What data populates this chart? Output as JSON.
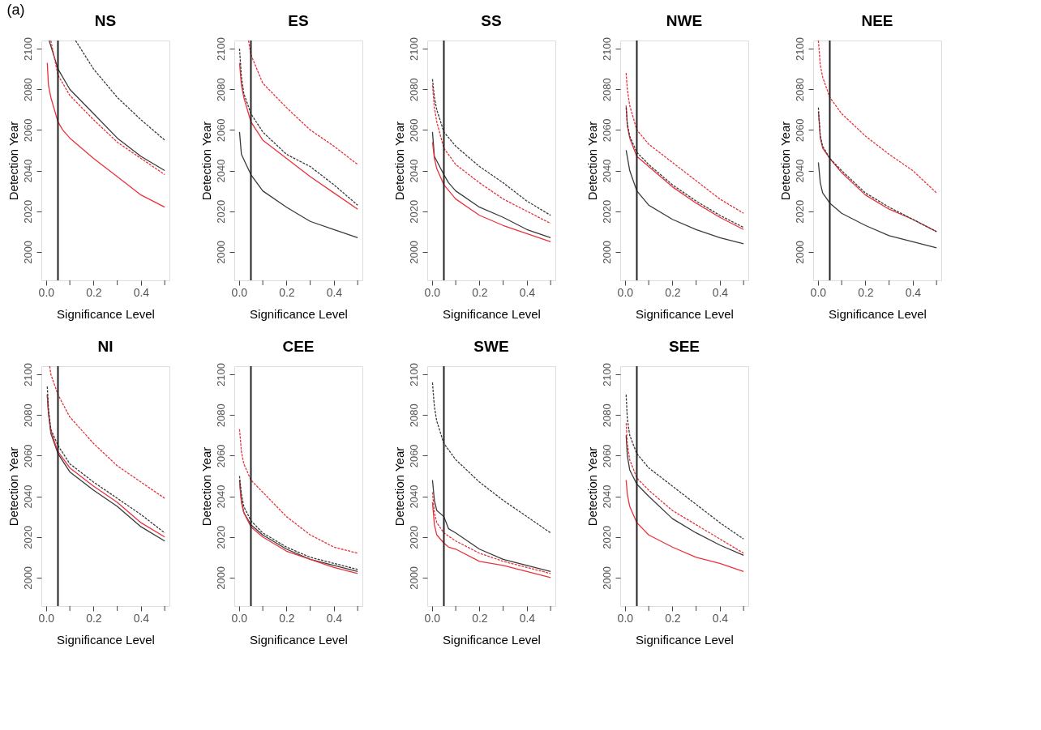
{
  "chart_data": [
    {
      "type": "line",
      "title": "NS",
      "xlabel": "Significance Level",
      "ylabel": "Detection Year",
      "annotations": [
        "(a)"
      ],
      "xlim": [
        -0.02,
        0.52
      ],
      "ylim": [
        1986,
        2104
      ],
      "xticks": [
        {
          "value": 0,
          "label": "0.0"
        },
        {
          "value": 0.1,
          "label": null
        },
        {
          "value": 0.2,
          "label": "0.2"
        },
        {
          "value": 0.3,
          "label": null
        },
        {
          "value": 0.4,
          "label": "0.4"
        },
        {
          "value": 0.5,
          "label": null
        }
      ],
      "yticks": [
        2000,
        2020,
        2040,
        2060,
        2080,
        2100
      ],
      "grid": false,
      "legend": false,
      "ref_lines": [
        {
          "axis": "x",
          "value": 0.05
        }
      ],
      "series": [
        {
          "color": "#3a3a3a",
          "line_style": "solid",
          "x": [
            0.013,
            0.05,
            0.1,
            0.2,
            0.3,
            0.4,
            0.5
          ],
          "values": [
            2104,
            2090,
            2080,
            2068,
            2056,
            2047,
            2040
          ]
        },
        {
          "color": "#3a3a3a",
          "line_style": "dashed",
          "x": [
            0.124,
            0.2,
            0.3,
            0.4,
            0.5
          ],
          "values": [
            2104,
            2090,
            2076,
            2065,
            2055
          ]
        },
        {
          "color": "#e8323c",
          "line_style": "solid",
          "x": [
            0.005,
            0.01,
            0.02,
            0.05,
            0.07,
            0.1,
            0.2,
            0.3,
            0.4,
            0.5
          ],
          "values": [
            2093,
            2082,
            2076,
            2064,
            2060,
            2056,
            2046,
            2037,
            2028,
            2022
          ]
        },
        {
          "color": "#e8323c",
          "line_style": "dashed",
          "x": [
            0.02,
            0.05,
            0.1,
            0.2,
            0.3,
            0.4,
            0.5
          ],
          "values": [
            2104,
            2087,
            2077,
            2065,
            2054,
            2046,
            2038
          ]
        }
      ]
    },
    {
      "type": "line",
      "title": "ES",
      "xlabel": "Significance Level",
      "ylabel": "Detection Year",
      "xlim": [
        -0.02,
        0.52
      ],
      "ylim": [
        1986,
        2104
      ],
      "xticks": [
        {
          "value": 0,
          "label": "0.0"
        },
        {
          "value": 0.1,
          "label": null
        },
        {
          "value": 0.2,
          "label": "0.2"
        },
        {
          "value": 0.3,
          "label": null
        },
        {
          "value": 0.4,
          "label": "0.4"
        },
        {
          "value": 0.5,
          "label": null
        }
      ],
      "yticks": [
        2000,
        2020,
        2040,
        2060,
        2080,
        2100
      ],
      "grid": false,
      "legend": false,
      "ref_lines": [
        {
          "axis": "x",
          "value": 0.05
        }
      ],
      "series": [
        {
          "color": "#3a3a3a",
          "line_style": "solid",
          "x": [
            0.002,
            0.01,
            0.05,
            0.1,
            0.2,
            0.3,
            0.4,
            0.5
          ],
          "values": [
            2059,
            2048,
            2038,
            2030,
            2022,
            2015,
            2011,
            2007
          ]
        },
        {
          "color": "#3a3a3a",
          "line_style": "dashed",
          "x": [
            0.002,
            0.01,
            0.02,
            0.05,
            0.1,
            0.2,
            0.3,
            0.4,
            0.5
          ],
          "values": [
            2100,
            2086,
            2078,
            2068,
            2059,
            2048,
            2042,
            2033,
            2023
          ]
        },
        {
          "color": "#e8323c",
          "line_style": "solid",
          "x": [
            0.002,
            0.01,
            0.02,
            0.05,
            0.1,
            0.2,
            0.3,
            0.4,
            0.5
          ],
          "values": [
            2093,
            2082,
            2076,
            2064,
            2055,
            2046,
            2037,
            2029,
            2021
          ]
        },
        {
          "color": "#e8323c",
          "line_style": "dashed",
          "x": [
            0.04,
            0.05,
            0.1,
            0.2,
            0.3,
            0.4,
            0.5
          ],
          "values": [
            2104,
            2097,
            2083,
            2071,
            2060,
            2052,
            2043
          ]
        }
      ]
    },
    {
      "type": "line",
      "title": "SS",
      "xlabel": "Significance Level",
      "ylabel": "Detection Year",
      "xlim": [
        -0.02,
        0.52
      ],
      "ylim": [
        1986,
        2104
      ],
      "xticks": [
        {
          "value": 0,
          "label": "0.0"
        },
        {
          "value": 0.1,
          "label": null
        },
        {
          "value": 0.2,
          "label": "0.2"
        },
        {
          "value": 0.3,
          "label": null
        },
        {
          "value": 0.4,
          "label": "0.4"
        },
        {
          "value": 0.5,
          "label": null
        }
      ],
      "yticks": [
        2000,
        2020,
        2040,
        2060,
        2080,
        2100
      ],
      "grid": false,
      "legend": false,
      "ref_lines": [
        {
          "axis": "x",
          "value": 0.05
        }
      ],
      "series": [
        {
          "color": "#3a3a3a",
          "line_style": "solid",
          "x": [
            0.002,
            0.01,
            0.05,
            0.07,
            0.1,
            0.2,
            0.3,
            0.4,
            0.5
          ],
          "values": [
            2059,
            2047,
            2038,
            2034,
            2030,
            2022,
            2017,
            2011,
            2007
          ]
        },
        {
          "color": "#3a3a3a",
          "line_style": "dashed",
          "x": [
            0.002,
            0.01,
            0.02,
            0.05,
            0.1,
            0.2,
            0.3,
            0.4,
            0.5
          ],
          "values": [
            2085,
            2076,
            2070,
            2059,
            2052,
            2042,
            2034,
            2025,
            2018
          ]
        },
        {
          "color": "#e8323c",
          "line_style": "solid",
          "x": [
            0.002,
            0.01,
            0.02,
            0.05,
            0.1,
            0.2,
            0.3,
            0.4,
            0.5
          ],
          "values": [
            2054,
            2046,
            2041,
            2033,
            2026,
            2018,
            2013,
            2009,
            2005
          ]
        },
        {
          "color": "#e8323c",
          "line_style": "dashed",
          "x": [
            0.002,
            0.01,
            0.02,
            0.05,
            0.1,
            0.2,
            0.3,
            0.4,
            0.5
          ],
          "values": [
            2082,
            2071,
            2064,
            2051,
            2043,
            2034,
            2026,
            2020,
            2014
          ]
        }
      ]
    },
    {
      "type": "line",
      "title": "NWE",
      "xlabel": "Significance Level",
      "ylabel": "Detection Year",
      "xlim": [
        -0.02,
        0.52
      ],
      "ylim": [
        1986,
        2104
      ],
      "xticks": [
        {
          "value": 0,
          "label": "0.0"
        },
        {
          "value": 0.1,
          "label": null
        },
        {
          "value": 0.2,
          "label": "0.2"
        },
        {
          "value": 0.3,
          "label": null
        },
        {
          "value": 0.4,
          "label": "0.4"
        },
        {
          "value": 0.5,
          "label": null
        }
      ],
      "yticks": [
        2000,
        2020,
        2040,
        2060,
        2080,
        2100
      ],
      "grid": false,
      "legend": false,
      "ref_lines": [
        {
          "axis": "x",
          "value": 0.05
        }
      ],
      "series": [
        {
          "color": "#3a3a3a",
          "line_style": "solid",
          "x": [
            0.005,
            0.02,
            0.05,
            0.1,
            0.2,
            0.3,
            0.4,
            0.5
          ],
          "values": [
            2050,
            2040,
            2030,
            2023,
            2016,
            2011,
            2007,
            2004
          ]
        },
        {
          "color": "#3a3a3a",
          "line_style": "dashed",
          "x": [
            0.005,
            0.01,
            0.02,
            0.05,
            0.1,
            0.2,
            0.3,
            0.4,
            0.5
          ],
          "values": [
            2071,
            2063,
            2057,
            2049,
            2043,
            2033,
            2025,
            2018,
            2012
          ]
        },
        {
          "color": "#e8323c",
          "line_style": "solid",
          "x": [
            0.005,
            0.01,
            0.02,
            0.05,
            0.1,
            0.2,
            0.3,
            0.4,
            0.5
          ],
          "values": [
            2072,
            2062,
            2056,
            2047,
            2042,
            2032,
            2024,
            2017,
            2011
          ]
        },
        {
          "color": "#e8323c",
          "line_style": "dashed",
          "x": [
            0.005,
            0.01,
            0.02,
            0.05,
            0.1,
            0.2,
            0.3,
            0.4,
            0.5
          ],
          "values": [
            2088,
            2080,
            2072,
            2060,
            2053,
            2044,
            2035,
            2026,
            2019
          ]
        }
      ]
    },
    {
      "type": "line",
      "title": "NEE",
      "xlabel": "Significance Level",
      "ylabel": "Detection Year",
      "xlim": [
        -0.02,
        0.52
      ],
      "ylim": [
        1986,
        2104
      ],
      "xticks": [
        {
          "value": 0,
          "label": "0.0"
        },
        {
          "value": 0.1,
          "label": null
        },
        {
          "value": 0.2,
          "label": "0.2"
        },
        {
          "value": 0.3,
          "label": null
        },
        {
          "value": 0.4,
          "label": "0.4"
        },
        {
          "value": 0.5,
          "label": null
        }
      ],
      "yticks": [
        2000,
        2020,
        2040,
        2060,
        2080,
        2100
      ],
      "grid": false,
      "legend": false,
      "ref_lines": [
        {
          "axis": "x",
          "value": 0.05
        }
      ],
      "series": [
        {
          "color": "#3a3a3a",
          "line_style": "solid",
          "x": [
            0.002,
            0.01,
            0.02,
            0.05,
            0.1,
            0.2,
            0.3,
            0.4,
            0.5
          ],
          "values": [
            2044,
            2034,
            2029,
            2024,
            2019,
            2013,
            2008,
            2005,
            2002
          ]
        },
        {
          "color": "#3a3a3a",
          "line_style": "dashed",
          "x": [
            0.002,
            0.01,
            0.02,
            0.05,
            0.1,
            0.2,
            0.3,
            0.4,
            0.5
          ],
          "values": [
            2071,
            2057,
            2052,
            2046,
            2040,
            2029,
            2022,
            2016,
            2010
          ]
        },
        {
          "color": "#e8323c",
          "line_style": "solid",
          "x": [
            0.002,
            0.01,
            0.02,
            0.05,
            0.1,
            0.2,
            0.3,
            0.4,
            0.5
          ],
          "values": [
            2069,
            2056,
            2051,
            2046,
            2039,
            2028,
            2021,
            2016,
            2010
          ]
        },
        {
          "color": "#e8323c",
          "line_style": "dashed",
          "x": [
            0.002,
            0.01,
            0.02,
            0.05,
            0.1,
            0.2,
            0.3,
            0.4,
            0.5
          ],
          "values": [
            2104,
            2092,
            2086,
            2076,
            2068,
            2057,
            2048,
            2040,
            2029
          ]
        }
      ]
    },
    {
      "type": "line",
      "title": "NI",
      "xlabel": "Significance Level",
      "ylabel": "Detection Year",
      "xlim": [
        -0.02,
        0.52
      ],
      "ylim": [
        1986,
        2104
      ],
      "xticks": [
        {
          "value": 0,
          "label": "0.0"
        },
        {
          "value": 0.1,
          "label": null
        },
        {
          "value": 0.2,
          "label": "0.2"
        },
        {
          "value": 0.3,
          "label": null
        },
        {
          "value": 0.4,
          "label": "0.4"
        },
        {
          "value": 0.5,
          "label": null
        }
      ],
      "yticks": [
        2000,
        2020,
        2040,
        2060,
        2080,
        2100
      ],
      "grid": false,
      "legend": false,
      "ref_lines": [
        {
          "axis": "x",
          "value": 0.05
        }
      ],
      "series": [
        {
          "color": "#3a3a3a",
          "line_style": "solid",
          "x": [
            0.005,
            0.01,
            0.02,
            0.05,
            0.1,
            0.2,
            0.3,
            0.4,
            0.5
          ],
          "values": [
            2090,
            2081,
            2071,
            2061,
            2052,
            2043,
            2035,
            2025,
            2018
          ]
        },
        {
          "color": "#3a3a3a",
          "line_style": "dashed",
          "x": [
            0.005,
            0.01,
            0.02,
            0.05,
            0.1,
            0.2,
            0.3,
            0.4,
            0.5
          ],
          "values": [
            2094,
            2083,
            2073,
            2065,
            2056,
            2047,
            2039,
            2031,
            2022
          ]
        },
        {
          "color": "#e8323c",
          "line_style": "solid",
          "x": [
            0.005,
            0.01,
            0.02,
            0.05,
            0.1,
            0.2,
            0.3,
            0.4,
            0.5
          ],
          "values": [
            2090,
            2081,
            2072,
            2062,
            2054,
            2045,
            2037,
            2027,
            2020
          ]
        },
        {
          "color": "#e8323c",
          "line_style": "dashed",
          "x": [
            0.015,
            0.02,
            0.05,
            0.1,
            0.2,
            0.3,
            0.4,
            0.5
          ],
          "values": [
            2104,
            2100,
            2090,
            2079,
            2066,
            2055,
            2047,
            2039
          ]
        }
      ]
    },
    {
      "type": "line",
      "title": "CEE",
      "xlabel": "Significance Level",
      "ylabel": "Detection Year",
      "xlim": [
        -0.02,
        0.52
      ],
      "ylim": [
        1986,
        2104
      ],
      "xticks": [
        {
          "value": 0,
          "label": "0.0"
        },
        {
          "value": 0.1,
          "label": null
        },
        {
          "value": 0.2,
          "label": "0.2"
        },
        {
          "value": 0.3,
          "label": null
        },
        {
          "value": 0.4,
          "label": "0.4"
        },
        {
          "value": 0.5,
          "label": null
        }
      ],
      "yticks": [
        2000,
        2020,
        2040,
        2060,
        2080,
        2100
      ],
      "grid": false,
      "legend": false,
      "ref_lines": [
        {
          "axis": "x",
          "value": 0.05
        }
      ],
      "series": [
        {
          "color": "#3a3a3a",
          "line_style": "solid",
          "x": [
            0.002,
            0.01,
            0.02,
            0.05,
            0.1,
            0.2,
            0.3,
            0.4,
            0.5
          ],
          "values": [
            2048,
            2038,
            2032,
            2026,
            2021,
            2014,
            2009,
            2006,
            2003
          ]
        },
        {
          "color": "#3a3a3a",
          "line_style": "dashed",
          "x": [
            0.002,
            0.01,
            0.02,
            0.05,
            0.1,
            0.2,
            0.3,
            0.4,
            0.5
          ],
          "values": [
            2050,
            2041,
            2035,
            2028,
            2022,
            2015,
            2010,
            2007,
            2004
          ]
        },
        {
          "color": "#e8323c",
          "line_style": "solid",
          "x": [
            0.002,
            0.01,
            0.02,
            0.05,
            0.1,
            0.2,
            0.3,
            0.4,
            0.5
          ],
          "values": [
            2047,
            2037,
            2032,
            2025,
            2020,
            2013,
            2009,
            2005,
            2002
          ]
        },
        {
          "color": "#e8323c",
          "line_style": "dashed",
          "x": [
            0.002,
            0.01,
            0.02,
            0.05,
            0.1,
            0.2,
            0.3,
            0.4,
            0.5
          ],
          "values": [
            2073,
            2062,
            2056,
            2048,
            2042,
            2030,
            2021,
            2015,
            2012
          ]
        }
      ]
    },
    {
      "type": "line",
      "title": "SWE",
      "xlabel": "Significance Level",
      "ylabel": "Detection Year",
      "xlim": [
        -0.02,
        0.52
      ],
      "ylim": [
        1986,
        2104
      ],
      "xticks": [
        {
          "value": 0,
          "label": "0.0"
        },
        {
          "value": 0.1,
          "label": null
        },
        {
          "value": 0.2,
          "label": "0.2"
        },
        {
          "value": 0.3,
          "label": null
        },
        {
          "value": 0.4,
          "label": "0.4"
        },
        {
          "value": 0.5,
          "label": null
        }
      ],
      "yticks": [
        2000,
        2020,
        2040,
        2060,
        2080,
        2100
      ],
      "grid": false,
      "legend": false,
      "ref_lines": [
        {
          "axis": "x",
          "value": 0.05
        }
      ],
      "series": [
        {
          "color": "#3a3a3a",
          "line_style": "solid",
          "x": [
            0.002,
            0.01,
            0.02,
            0.05,
            0.07,
            0.1,
            0.2,
            0.3,
            0.4,
            0.5
          ],
          "values": [
            2048,
            2038,
            2033,
            2030,
            2024,
            2022,
            2014,
            2009,
            2006,
            2003
          ]
        },
        {
          "color": "#3a3a3a",
          "line_style": "dashed",
          "x": [
            0.002,
            0.01,
            0.02,
            0.05,
            0.1,
            0.2,
            0.3,
            0.4,
            0.5
          ],
          "values": [
            2096,
            2084,
            2077,
            2066,
            2058,
            2047,
            2038,
            2030,
            2022
          ]
        },
        {
          "color": "#e8323c",
          "line_style": "solid",
          "x": [
            0.002,
            0.01,
            0.02,
            0.05,
            0.07,
            0.1,
            0.2,
            0.3,
            0.4,
            0.5
          ],
          "values": [
            2037,
            2026,
            2021,
            2017,
            2015,
            2014,
            2008,
            2006,
            2003,
            2000
          ]
        },
        {
          "color": "#e8323c",
          "line_style": "dashed",
          "x": [
            0.002,
            0.01,
            0.02,
            0.05,
            0.1,
            0.2,
            0.3,
            0.4,
            0.5
          ],
          "values": [
            2042,
            2032,
            2027,
            2022,
            2018,
            2012,
            2008,
            2005,
            2002
          ]
        }
      ]
    },
    {
      "type": "line",
      "title": "SEE",
      "xlabel": "Significance Level",
      "ylabel": "Detection Year",
      "xlim": [
        -0.02,
        0.52
      ],
      "ylim": [
        1986,
        2104
      ],
      "xticks": [
        {
          "value": 0,
          "label": "0.0"
        },
        {
          "value": 0.1,
          "label": null
        },
        {
          "value": 0.2,
          "label": "0.2"
        },
        {
          "value": 0.3,
          "label": null
        },
        {
          "value": 0.4,
          "label": "0.4"
        },
        {
          "value": 0.5,
          "label": null
        }
      ],
      "yticks": [
        2000,
        2020,
        2040,
        2060,
        2080,
        2100
      ],
      "grid": false,
      "legend": false,
      "ref_lines": [
        {
          "axis": "x",
          "value": 0.05
        }
      ],
      "series": [
        {
          "color": "#3a3a3a",
          "line_style": "solid",
          "x": [
            0.005,
            0.01,
            0.02,
            0.05,
            0.1,
            0.2,
            0.3,
            0.4,
            0.5
          ],
          "values": [
            2070,
            2060,
            2053,
            2046,
            2040,
            2029,
            2022,
            2016,
            2011
          ]
        },
        {
          "color": "#3a3a3a",
          "line_style": "dashed",
          "x": [
            0.005,
            0.01,
            0.02,
            0.05,
            0.1,
            0.2,
            0.3,
            0.4,
            0.5
          ],
          "values": [
            2090,
            2078,
            2070,
            2061,
            2054,
            2045,
            2036,
            2027,
            2019
          ]
        },
        {
          "color": "#e8323c",
          "line_style": "solid",
          "x": [
            0.005,
            0.01,
            0.02,
            0.05,
            0.1,
            0.2,
            0.3,
            0.4,
            0.5
          ],
          "values": [
            2048,
            2041,
            2035,
            2027,
            2021,
            2015,
            2010,
            2007,
            2003
          ]
        },
        {
          "color": "#e8323c",
          "line_style": "dashed",
          "x": [
            0.005,
            0.01,
            0.02,
            0.05,
            0.1,
            0.2,
            0.3,
            0.4,
            0.5
          ],
          "values": [
            2076,
            2066,
            2058,
            2049,
            2043,
            2033,
            2026,
            2019,
            2012
          ]
        }
      ]
    }
  ]
}
